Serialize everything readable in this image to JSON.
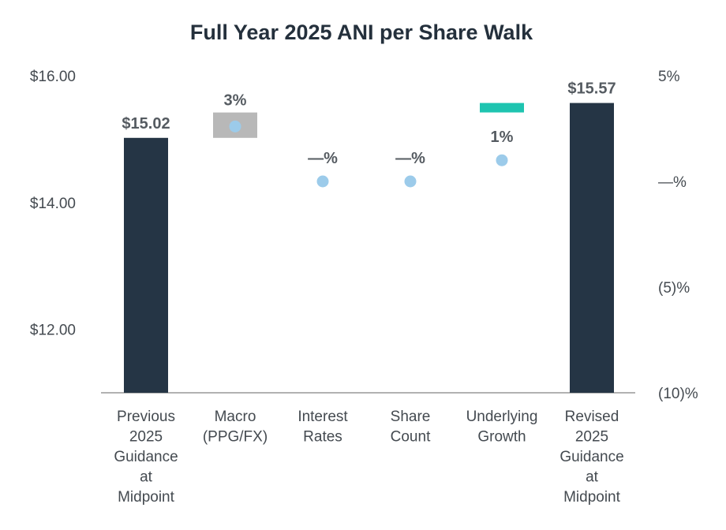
{
  "chart_data": {
    "type": "bar",
    "subtype": "waterfall",
    "title": "Full Year 2025 ANI per Share Walk",
    "categories": [
      [
        "Previous",
        "2025",
        "Guidance",
        "at",
        "Midpoint"
      ],
      [
        "Macro",
        "(PPG/FX)"
      ],
      [
        "Interest",
        "Rates"
      ],
      [
        "Share",
        "Count"
      ],
      [
        "Underlying",
        "Growth"
      ],
      [
        "Revised",
        "2025",
        "Guidance",
        "at",
        "Midpoint"
      ]
    ],
    "left_axis": {
      "ylim": [
        11.0,
        16.0
      ],
      "ticks": [
        12.0,
        14.0,
        16.0
      ],
      "tick_labels": [
        "$12.00",
        "$14.00",
        "$16.00"
      ]
    },
    "right_axis": {
      "ylim": [
        -10,
        5
      ],
      "ticks": [
        5,
        0,
        -5,
        -10
      ],
      "tick_labels": [
        "5%",
        "—%",
        "(5)%",
        "(10)%"
      ]
    },
    "bars": [
      {
        "category_index": 0,
        "kind": "total",
        "start": 11.0,
        "end": 15.02,
        "label": "$15.02",
        "color": "#253545"
      },
      {
        "category_index": 1,
        "kind": "change",
        "start": 15.02,
        "end": 15.42,
        "label": "3%",
        "color": "#b8b8b8"
      },
      {
        "category_index": 2,
        "kind": "change",
        "start": 15.42,
        "end": 15.42,
        "label": "—%",
        "color": "#b8b8b8"
      },
      {
        "category_index": 3,
        "kind": "change",
        "start": 15.42,
        "end": 15.42,
        "label": "—%",
        "color": "#b8b8b8"
      },
      {
        "category_index": 4,
        "kind": "change",
        "start": 15.42,
        "end": 15.57,
        "label": "1%",
        "color": "#1ec4b0"
      },
      {
        "category_index": 5,
        "kind": "total",
        "start": 11.0,
        "end": 15.57,
        "label": "$15.57",
        "color": "#253545"
      }
    ],
    "growth_points": {
      "axis": "right",
      "color": "#9ccbea",
      "values": [
        null,
        2.6,
        0.0,
        0.0,
        1.0,
        null
      ]
    }
  }
}
